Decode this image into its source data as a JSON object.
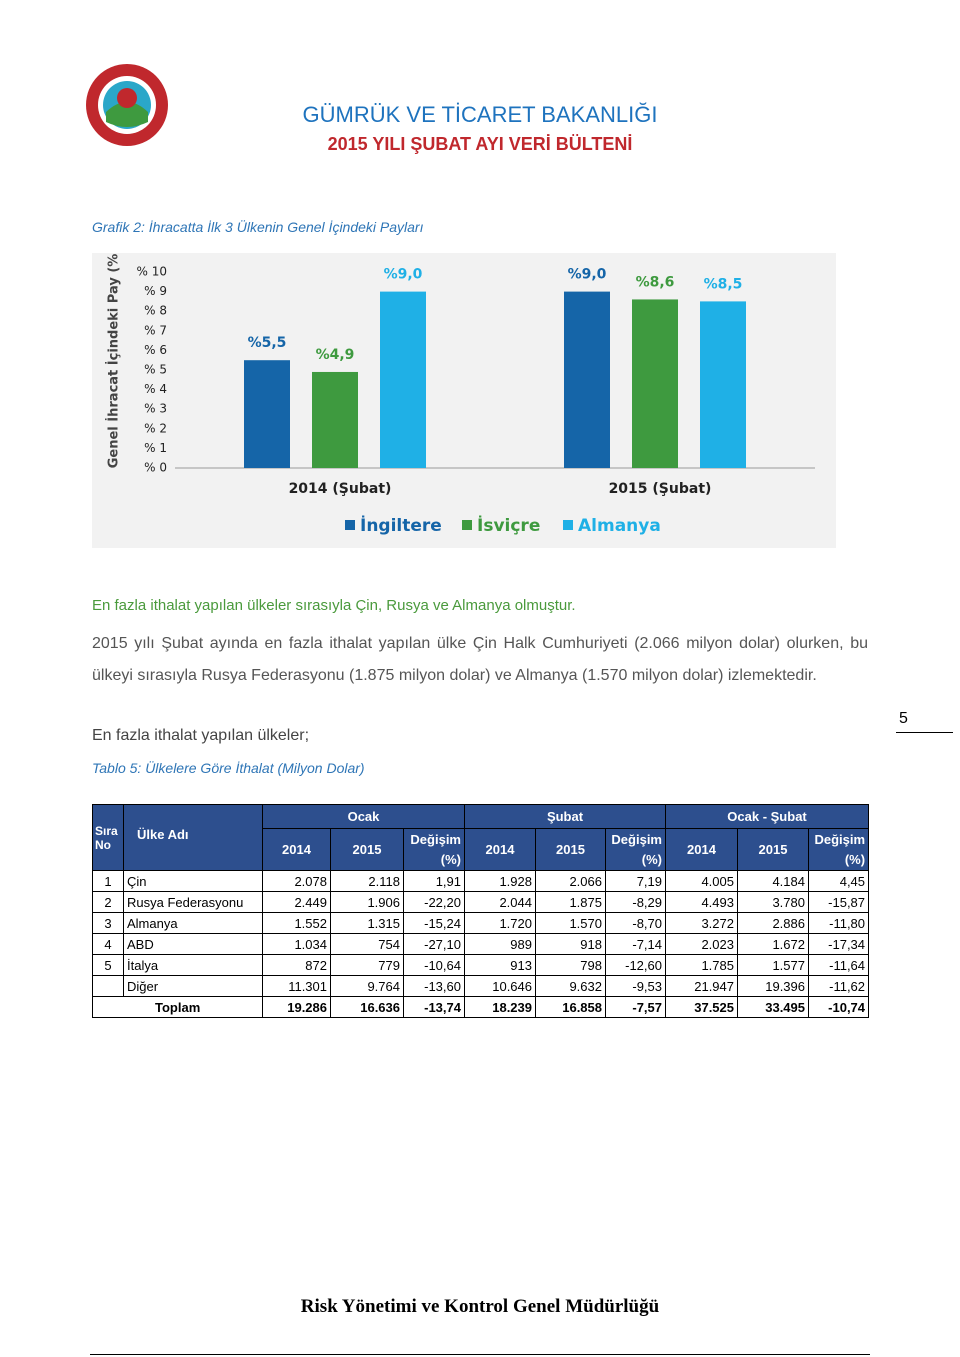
{
  "header": {
    "title": "GÜMRÜK VE TİCARET BAKANLIĞI",
    "subtitle": "2015 YILI ŞUBAT AYI VERİ BÜLTENİ"
  },
  "chart_data": {
    "type": "bar",
    "title": "Grafik 2: İhracatta İlk 3 Ülkenin Genel İçindeki Payları",
    "y_label": "Genel İhracat İçindeki Pay (%)",
    "categories": [
      "2014 (Şubat)",
      "2015 (Şubat)"
    ],
    "series": [
      {
        "name": "İngiltere",
        "color": "#1565a8",
        "values": [
          5.5,
          9.0
        ],
        "value_labels": [
          "%5,5",
          "%9,0"
        ]
      },
      {
        "name": "İsviçre",
        "color": "#3e9a3f",
        "values": [
          4.9,
          8.6
        ],
        "value_labels": [
          "%4,9",
          "%8,6"
        ]
      },
      {
        "name": "Almanya",
        "color": "#1fb0e6",
        "values": [
          9.0,
          8.5
        ],
        "value_labels": [
          "%9,0",
          "%8,5"
        ]
      }
    ],
    "ylim": [
      0,
      10
    ],
    "yticks": [
      {
        "value": 0,
        "label": "% 0"
      },
      {
        "value": 1,
        "label": "% 1"
      },
      {
        "value": 2,
        "label": "% 2"
      },
      {
        "value": 3,
        "label": "% 3"
      },
      {
        "value": 4,
        "label": "% 4"
      },
      {
        "value": 5,
        "label": "% 5"
      },
      {
        "value": 6,
        "label": "% 6"
      },
      {
        "value": 7,
        "label": "% 7"
      },
      {
        "value": 8,
        "label": "% 8"
      },
      {
        "value": 9,
        "label": "% 9"
      },
      {
        "value": 10,
        "label": "% 10"
      }
    ],
    "grid": false,
    "legend": "bottom"
  },
  "text": {
    "heading": "En fazla ithalat yapılan ülkeler sırasıyla Çin, Rusya ve Almanya olmuştur.",
    "paragraph": "2015 yılı Şubat ayında en fazla ithalat yapılan ülke Çin Halk Cumhuriyeti (2.066 milyon dolar) olurken, bu ülkeyi sırasıyla Rusya Federasyonu (1.875 milyon dolar) ve Almanya (1.570 milyon dolar) izlemektedir.",
    "intro": "En fazla ithalat yapılan ülkeler;"
  },
  "page_number": "5",
  "table": {
    "caption": "Tablo 5: Ülkelere Göre İthalat (Milyon Dolar)",
    "columns": {
      "no": "Sıra No",
      "name": "Ülke Adı",
      "groups": [
        "Ocak",
        "Şubat",
        "Ocak - Şubat"
      ],
      "sub": [
        "2014",
        "2015",
        "Değişim (%)"
      ]
    },
    "rows": [
      {
        "no": "1",
        "name": "Çin",
        "values": [
          "2.078",
          "2.118",
          "1,91",
          "1.928",
          "2.066",
          "7,19",
          "4.005",
          "4.184",
          "4,45"
        ]
      },
      {
        "no": "2",
        "name": "Rusya Federasyonu",
        "values": [
          "2.449",
          "1.906",
          "-22,20",
          "2.044",
          "1.875",
          "-8,29",
          "4.493",
          "3.780",
          "-15,87"
        ]
      },
      {
        "no": "3",
        "name": "Almanya",
        "values": [
          "1.552",
          "1.315",
          "-15,24",
          "1.720",
          "1.570",
          "-8,70",
          "3.272",
          "2.886",
          "-11,80"
        ]
      },
      {
        "no": "4",
        "name": "ABD",
        "values": [
          "1.034",
          "754",
          "-27,10",
          "989",
          "918",
          "-7,14",
          "2.023",
          "1.672",
          "-17,34"
        ]
      },
      {
        "no": "5",
        "name": "İtalya",
        "values": [
          "872",
          "779",
          "-10,64",
          "913",
          "798",
          "-12,60",
          "1.785",
          "1.577",
          "-11,64"
        ]
      },
      {
        "name": "Diğer",
        "values": [
          "11.301",
          "9.764",
          "-13,60",
          "10.646",
          "9.632",
          "-9,53",
          "21.947",
          "19.396",
          "-11,62"
        ]
      }
    ],
    "total": {
      "name": "Toplam",
      "values": [
        "19.286",
        "16.636",
        "-13,74",
        "18.239",
        "16.858",
        "-7,57",
        "37.525",
        "33.495",
        "-10,74"
      ]
    }
  },
  "footer": "Risk Yönetimi ve Kontrol Genel Müdürlüğü"
}
